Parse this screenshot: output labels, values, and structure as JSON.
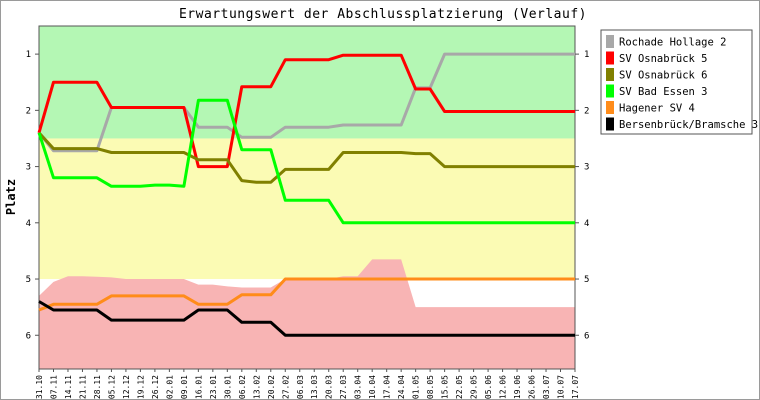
{
  "chart_data": {
    "type": "line",
    "title": "Erwartungswert der Abschlussplatzierung (Verlauf)",
    "ylabel": "Platz",
    "xlabel": "",
    "ylim": [
      0.5,
      6.6
    ],
    "y_inverted": true,
    "yticks": [
      1,
      2,
      3,
      4,
      5,
      6
    ],
    "grid": false,
    "legend_position": "right",
    "x_tick_labels": [
      "31.10",
      "07.11",
      "14.11",
      "21.11",
      "28.11",
      "05.12",
      "12.12",
      "19.12",
      "26.12",
      "02.01",
      "09.01",
      "16.01",
      "23.01",
      "30.01",
      "06.02",
      "13.02",
      "20.02",
      "27.02",
      "06.03",
      "13.03",
      "20.03",
      "27.03",
      "03.04",
      "10.04",
      "17.04",
      "24.04",
      "01.05",
      "08.05",
      "15.05",
      "22.05",
      "29.05",
      "05.06",
      "12.06",
      "19.06",
      "26.06",
      "03.07",
      "10.07",
      "17.07"
    ],
    "zones": [
      {
        "name": "top",
        "from": 0.5,
        "to": 2.5,
        "color": "#b4f7b4"
      },
      {
        "name": "middle",
        "from": 2.5,
        "to": 5.0,
        "color": "#fbfbb4"
      }
    ],
    "bottom_zone": {
      "color": "#f8b4b4",
      "upper_edge": [
        5.3,
        5.05,
        4.95,
        4.95,
        4.96,
        4.97,
        5.0,
        5.0,
        5.0,
        5.0,
        5.0,
        5.1,
        5.1,
        5.13,
        5.15,
        5.15,
        5.15,
        5.0,
        5.0,
        5.0,
        5.0,
        4.95,
        4.95,
        4.65,
        4.65,
        4.65,
        5.5,
        5.5,
        5.5,
        5.5,
        5.5,
        5.5,
        5.5,
        5.5,
        5.5,
        5.5,
        5.5,
        5.5
      ]
    },
    "series": [
      {
        "name": "Rochade Hollage 2",
        "color": "#a8a8a8",
        "values": [
          2.4,
          2.72,
          2.72,
          2.72,
          2.72,
          1.95,
          1.95,
          1.95,
          1.95,
          1.95,
          1.95,
          2.3,
          2.3,
          2.3,
          2.48,
          2.48,
          2.48,
          2.3,
          2.3,
          2.3,
          2.3,
          2.26,
          2.26,
          2.26,
          2.26,
          2.26,
          1.6,
          1.6,
          1.0,
          1.0,
          1.0,
          1.0,
          1.0,
          1.0,
          1.0,
          1.0,
          1.0,
          1.0
        ]
      },
      {
        "name": "SV Osnabrück 5",
        "color": "#ff0000",
        "values": [
          2.4,
          1.5,
          1.5,
          1.5,
          1.5,
          1.95,
          1.95,
          1.95,
          1.95,
          1.95,
          1.95,
          3.0,
          3.0,
          3.0,
          1.58,
          1.58,
          1.58,
          1.1,
          1.1,
          1.1,
          1.1,
          1.02,
          1.02,
          1.02,
          1.02,
          1.02,
          1.62,
          1.62,
          2.02,
          2.02,
          2.02,
          2.02,
          2.02,
          2.02,
          2.02,
          2.02,
          2.02,
          2.02
        ]
      },
      {
        "name": "SV Osnabrück 6",
        "color": "#808000",
        "values": [
          2.4,
          2.68,
          2.68,
          2.68,
          2.68,
          2.75,
          2.75,
          2.75,
          2.75,
          2.75,
          2.75,
          2.88,
          2.88,
          2.88,
          3.25,
          3.28,
          3.28,
          3.05,
          3.05,
          3.05,
          3.05,
          2.75,
          2.75,
          2.75,
          2.75,
          2.75,
          2.77,
          2.77,
          3.0,
          3.0,
          3.0,
          3.0,
          3.0,
          3.0,
          3.0,
          3.0,
          3.0,
          3.0
        ]
      },
      {
        "name": "SV Bad Essen 3",
        "color": "#00ff00",
        "values": [
          2.4,
          3.2,
          3.2,
          3.2,
          3.2,
          3.35,
          3.35,
          3.35,
          3.33,
          3.33,
          3.35,
          1.82,
          1.82,
          1.82,
          2.7,
          2.7,
          2.7,
          3.6,
          3.6,
          3.6,
          3.6,
          4.0,
          4.0,
          4.0,
          4.0,
          4.0,
          4.0,
          4.0,
          4.0,
          4.0,
          4.0,
          4.0,
          4.0,
          4.0,
          4.0,
          4.0,
          4.0,
          4.0
        ]
      },
      {
        "name": "Hagener SV 4",
        "color": "#ff8c1a",
        "values": [
          5.55,
          5.45,
          5.45,
          5.45,
          5.45,
          5.3,
          5.3,
          5.3,
          5.3,
          5.3,
          5.3,
          5.45,
          5.45,
          5.45,
          5.28,
          5.28,
          5.28,
          5.0,
          5.0,
          5.0,
          5.0,
          5.0,
          5.0,
          5.0,
          5.0,
          5.0,
          5.0,
          5.0,
          5.0,
          5.0,
          5.0,
          5.0,
          5.0,
          5.0,
          5.0,
          5.0,
          5.0,
          5.0
        ]
      },
      {
        "name": "Bersenbrück/Bramsche 3",
        "color": "#000000",
        "values": [
          5.4,
          5.55,
          5.55,
          5.55,
          5.55,
          5.73,
          5.73,
          5.73,
          5.73,
          5.73,
          5.73,
          5.55,
          5.55,
          5.55,
          5.77,
          5.77,
          5.77,
          6.0,
          6.0,
          6.0,
          6.0,
          6.0,
          6.0,
          6.0,
          6.0,
          6.0,
          6.0,
          6.0,
          6.0,
          6.0,
          6.0,
          6.0,
          6.0,
          6.0,
          6.0,
          6.0,
          6.0,
          6.0
        ]
      }
    ]
  }
}
